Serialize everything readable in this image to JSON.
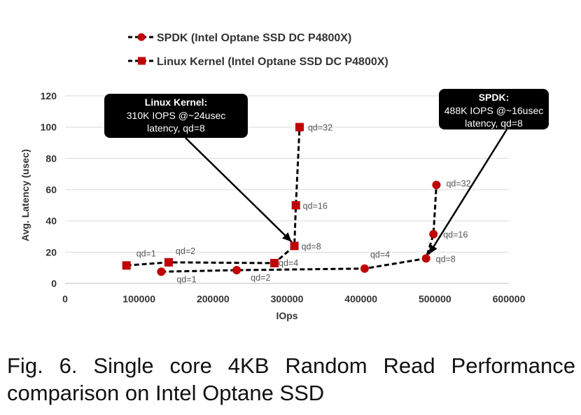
{
  "chart_data": {
    "type": "line",
    "title": "",
    "xlabel": "IOps",
    "ylabel": "Avg. Latency (usec)",
    "xlim": [
      0,
      600000
    ],
    "ylim": [
      0,
      120
    ],
    "x_ticks": [
      "0",
      "100000",
      "200000",
      "300000",
      "400000",
      "500000",
      "600000"
    ],
    "y_ticks": [
      "0",
      "20",
      "40",
      "60",
      "80",
      "100",
      "120"
    ],
    "grid": "horizontal",
    "legend_position": "top",
    "series": [
      {
        "name": "SPDK  (Intel Optane SSD DC P4800X)",
        "marker": "circle",
        "color": "#c00000",
        "points": [
          {
            "x": 130000,
            "y": 7.5,
            "label": "qd=1"
          },
          {
            "x": 232000,
            "y": 8.5,
            "label": "qd=2"
          },
          {
            "x": 405000,
            "y": 9.5,
            "label": "qd=4"
          },
          {
            "x": 488000,
            "y": 16,
            "label": "qd=8"
          },
          {
            "x": 498000,
            "y": 31.5,
            "label": "qd=16"
          },
          {
            "x": 502000,
            "y": 63,
            "label": "qd=32"
          }
        ]
      },
      {
        "name": "Linux Kernel  (Intel Optane SSD DC P4800X)",
        "marker": "square",
        "color": "#c00000",
        "points": [
          {
            "x": 83000,
            "y": 11.5,
            "label": "qd=1"
          },
          {
            "x": 140000,
            "y": 13.5,
            "label": "qd=2"
          },
          {
            "x": 283000,
            "y": 13,
            "label": "qd=4"
          },
          {
            "x": 310000,
            "y": 24,
            "label": "qd=8"
          },
          {
            "x": 312000,
            "y": 50,
            "label": "qd=16"
          },
          {
            "x": 317000,
            "y": 100,
            "label": "qd=32"
          }
        ]
      }
    ],
    "annotations": [
      {
        "title": "Linux Kernel:",
        "lines": [
          "310K IOPS @~24usec",
          "latency, qd=8"
        ]
      },
      {
        "title": "SPDK:",
        "lines": [
          "488K IOPS @~16usec",
          "latency, qd=8"
        ]
      }
    ]
  },
  "caption": "Fig. 6.  Single core 4KB Random Read Performance comparison on Intel Optane SSD"
}
